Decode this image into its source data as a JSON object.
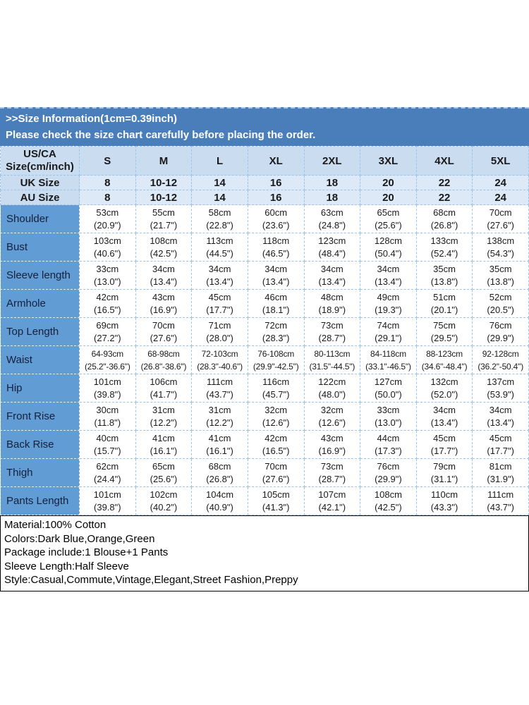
{
  "colors": {
    "banner_bg": "#4a7ebb",
    "header_cell_bg": "#cadcf0",
    "subheader_cell_bg": "#dde9f6",
    "label_column_bg": "#619cd5",
    "grid_line": "#9cc3e8",
    "footer_border": "#000000"
  },
  "banner": {
    "title": ">>Size Information(1cm=0.39inch)",
    "subtitle": "Please check the size chart carefully before placing the order."
  },
  "table": {
    "corner_label": "US/CA\nSize(cm/inch)",
    "sizes": [
      "S",
      "M",
      "L",
      "XL",
      "2XL",
      "3XL",
      "4XL",
      "5XL"
    ],
    "uk": {
      "label": "UK Size",
      "values": [
        "8",
        "10-12",
        "14",
        "16",
        "18",
        "20",
        "22",
        "24"
      ]
    },
    "au": {
      "label": "AU Size",
      "values": [
        "8",
        "10-12",
        "14",
        "16",
        "18",
        "20",
        "22",
        "24"
      ]
    },
    "measure_rows": [
      {
        "label": "Shoulder",
        "values": [
          "53cm\n(20.9\")",
          "55cm\n(21.7\")",
          "58cm\n(22.8\")",
          "60cm\n(23.6\")",
          "63cm\n(24.8\")",
          "65cm\n(25.6\")",
          "68cm\n(26.8\")",
          "70cm\n(27.6\")"
        ]
      },
      {
        "label": "Bust",
        "values": [
          "103cm\n(40.6\")",
          "108cm\n(42.5\")",
          "113cm\n(44.5\")",
          "118cm\n(46.5\")",
          "123cm\n(48.4\")",
          "128cm\n(50.4\")",
          "133cm\n(52.4\")",
          "138cm\n(54.3\")"
        ]
      },
      {
        "label": "Sleeve length",
        "values": [
          "33cm\n(13.0\")",
          "34cm\n(13.4\")",
          "34cm\n(13.4\")",
          "34cm\n(13.4\")",
          "34cm\n(13.4\")",
          "34cm\n(13.4\")",
          "35cm\n(13.8\")",
          "35cm\n(13.8\")"
        ]
      },
      {
        "label": "Armhole",
        "values": [
          "42cm\n(16.5\")",
          "43cm\n(16.9\")",
          "45cm\n(17.7\")",
          "46cm\n(18.1\")",
          "48cm\n(18.9\")",
          "49cm\n(19.3\")",
          "51cm\n(20.1\")",
          "52cm\n(20.5\")"
        ]
      },
      {
        "label": "Top Length",
        "values": [
          "69cm\n(27.2\")",
          "70cm\n(27.6\")",
          "71cm\n(28.0\")",
          "72cm\n(28.3\")",
          "73cm\n(28.7\")",
          "74cm\n(29.1\")",
          "75cm\n(29.5\")",
          "76cm\n(29.9\")"
        ]
      },
      {
        "label": "Waist",
        "values": [
          "64-93cm\n(25.2\"-36.6\")",
          "68-98cm\n(26.8\"-38.6\")",
          "72-103cm\n(28.3\"-40.6\")",
          "76-108cm\n(29.9\"-42.5\")",
          "80-113cm\n(31.5\"-44.5\")",
          "84-118cm\n(33.1\"-46.5\")",
          "88-123cm\n(34.6\"-48.4\")",
          "92-128cm\n(36.2\"-50.4\")"
        ]
      },
      {
        "label": "Hip",
        "values": [
          "101cm\n(39.8\")",
          "106cm\n(41.7\")",
          "111cm\n(43.7\")",
          "116cm\n(45.7\")",
          "122cm\n(48.0\")",
          "127cm\n(50.0\")",
          "132cm\n(52.0\")",
          "137cm\n(53.9\")"
        ]
      },
      {
        "label": "Front Rise",
        "values": [
          "30cm\n(11.8\")",
          "31cm\n(12.2\")",
          "31cm\n(12.2\")",
          "32cm\n(12.6\")",
          "32cm\n(12.6\")",
          "33cm\n(13.0\")",
          "34cm\n(13.4\")",
          "34cm\n(13.4\")"
        ]
      },
      {
        "label": "Back Rise",
        "values": [
          "40cm\n(15.7\")",
          "41cm\n(16.1\")",
          "41cm\n(16.1\")",
          "42cm\n(16.5\")",
          "43cm\n(16.9\")",
          "44cm\n(17.3\")",
          "45cm\n(17.7\")",
          "45cm\n(17.7\")"
        ]
      },
      {
        "label": "Thigh",
        "values": [
          "62cm\n(24.4\")",
          "65cm\n(25.6\")",
          "68cm\n(26.8\")",
          "70cm\n(27.6\")",
          "73cm\n(28.7\")",
          "76cm\n(29.9\")",
          "79cm\n(31.1\")",
          "81cm\n(31.9\")"
        ]
      },
      {
        "label": "Pants Length",
        "values": [
          "101cm\n(39.8\")",
          "102cm\n(40.2\")",
          "104cm\n(40.9\")",
          "105cm\n(41.3\")",
          "107cm\n(42.1\")",
          "108cm\n(42.5\")",
          "110cm\n(43.3\")",
          "111cm\n(43.7\")"
        ]
      }
    ]
  },
  "footer": {
    "lines": [
      "Material:100% Cotton",
      "Colors:Dark Blue,Orange,Green",
      "Package include:1 Blouse+1 Pants",
      "Sleeve Length:Half Sleeve",
      "Style:Casual,Commute,Vintage,Elegant,Street Fashion,Preppy"
    ]
  }
}
